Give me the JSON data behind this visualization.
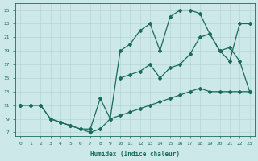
{
  "xlabel": "Humidex (Indice chaleur)",
  "background_color": "#cce8e8",
  "line_color": "#1a6b5a",
  "xmin": -0.5,
  "xmax": 23.5,
  "ymin": 6.5,
  "ymax": 26,
  "yticks": [
    7,
    9,
    11,
    13,
    15,
    17,
    19,
    21,
    23,
    25
  ],
  "xticks": [
    0,
    1,
    2,
    3,
    4,
    5,
    6,
    7,
    8,
    9,
    10,
    11,
    12,
    13,
    14,
    15,
    16,
    17,
    18,
    19,
    20,
    21,
    22,
    23
  ],
  "curve_top_x": [
    0,
    1,
    2,
    3,
    4,
    5,
    6,
    7,
    8,
    9,
    10,
    11,
    12,
    13,
    14,
    15,
    16,
    17,
    18,
    19,
    20,
    21,
    22,
    23
  ],
  "curve_top_y": [
    11,
    11,
    11,
    9,
    8.5,
    8,
    7.5,
    7.5,
    12,
    9,
    19,
    20,
    22,
    23,
    19,
    24,
    25,
    25,
    24.5,
    21.5,
    19,
    17.5,
    23,
    23
  ],
  "curve_bot_x": [
    0,
    1,
    2,
    3,
    4,
    5,
    6,
    7,
    8,
    9,
    10,
    11,
    12,
    13,
    14,
    15,
    16,
    17,
    18,
    19,
    20,
    21,
    22,
    23
  ],
  "curve_bot_y": [
    11,
    11,
    11,
    9,
    8.5,
    8,
    7.5,
    7,
    7.5,
    9,
    9.5,
    10,
    10.5,
    11,
    11.5,
    12,
    12.5,
    13,
    13.5,
    13,
    13,
    13,
    13,
    13
  ],
  "curve_mid_x": [
    10,
    11,
    12,
    13,
    14,
    15,
    16,
    17,
    18,
    19,
    20,
    21,
    22,
    23
  ],
  "curve_mid_y": [
    15,
    15.5,
    16,
    17,
    15,
    16.5,
    17,
    18.5,
    21,
    21.5,
    19,
    19.5,
    17.5,
    13
  ]
}
